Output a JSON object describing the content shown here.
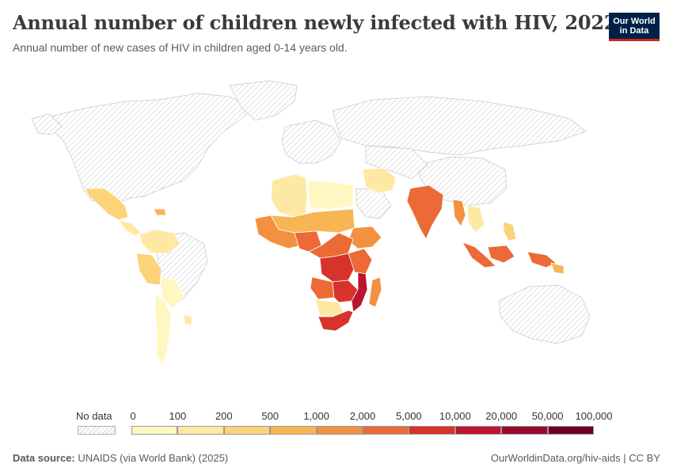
{
  "header": {
    "title": "Annual number of children newly infected with HIV, 2022",
    "subtitle": "Annual number of new cases of HIV in children aged 0-14 years old.",
    "logo_line1": "Our World",
    "logo_line2": "in Data"
  },
  "legend": {
    "no_data_label": "No data",
    "ticks": [
      "0",
      "100",
      "200",
      "500",
      "1,000",
      "2,000",
      "5,000",
      "10,000",
      "20,000",
      "50,000",
      "100,000"
    ],
    "colors": [
      "#fff7c2",
      "#fde9a4",
      "#fbd379",
      "#f8b554",
      "#f39140",
      "#ec6a35",
      "#d8332a",
      "#bb1530",
      "#9a0a2b",
      "#6d0022"
    ],
    "no_data_color": "#d9d9d9"
  },
  "map": {
    "regions": [
      {
        "name": "Mozambique",
        "color": "#bb1530"
      },
      {
        "name": "South Africa",
        "color": "#d8332a"
      },
      {
        "name": "Democratic Republic of Congo",
        "color": "#d8332a"
      },
      {
        "name": "Tanzania",
        "color": "#d8332a"
      },
      {
        "name": "Zambia",
        "color": "#d8332a"
      },
      {
        "name": "Angola",
        "color": "#ec6a35"
      },
      {
        "name": "Nigeria",
        "color": "#ec6a35"
      },
      {
        "name": "Kenya",
        "color": "#ec6a35"
      },
      {
        "name": "Uganda",
        "color": "#ec6a35"
      },
      {
        "name": "Madagascar",
        "color": "#f39140"
      },
      {
        "name": "India",
        "color": "#ec6a35"
      },
      {
        "name": "Indonesia",
        "color": "#ec6a35"
      },
      {
        "name": "Papua New Guinea",
        "color": "#ec6a35"
      },
      {
        "name": "Ethiopia",
        "color": "#f39140"
      },
      {
        "name": "Sudan",
        "color": "#f8b554"
      },
      {
        "name": "Chad",
        "color": "#f8b554"
      },
      {
        "name": "Cameroon",
        "color": "#ec6a35"
      },
      {
        "name": "Zimbabwe",
        "color": "#ec6a35"
      },
      {
        "name": "Malawi",
        "color": "#ec6a35"
      },
      {
        "name": "Namibia",
        "color": "#fbd379"
      },
      {
        "name": "Botswana",
        "color": "#fde9a4"
      },
      {
        "name": "Algeria",
        "color": "#fde9a4"
      },
      {
        "name": "Mali",
        "color": "#fde9a4"
      },
      {
        "name": "Niger",
        "color": "#fbd379"
      },
      {
        "name": "Libya",
        "color": "#fbd379"
      },
      {
        "name": "Egypt",
        "color": "#fff7c2"
      },
      {
        "name": "Mexico",
        "color": "#fbd379"
      },
      {
        "name": "Brazil",
        "color": "#fde9a4"
      },
      {
        "name": "Peru",
        "color": "#fbd379"
      },
      {
        "name": "Colombia",
        "color": "#fde9a4"
      },
      {
        "name": "Venezuela",
        "color": "#fde9a4"
      },
      {
        "name": "Argentina",
        "color": "#fff7c2"
      },
      {
        "name": "Myanmar",
        "color": "#f39140"
      },
      {
        "name": "Thailand",
        "color": "#fde9a4"
      },
      {
        "name": "Philippines",
        "color": "#fbd379"
      },
      {
        "name": "Iran",
        "color": "#fff7c2"
      },
      {
        "name": "Kazakhstan",
        "color": "#fff7c2"
      },
      {
        "name": "Ukraine",
        "color": "#fff7c2"
      }
    ]
  },
  "footer": {
    "source_label": "Data source:",
    "source_value": "UNAIDS (via World Bank) (2025)",
    "url": "OurWorldinData.org/hiv-aids | CC BY"
  }
}
